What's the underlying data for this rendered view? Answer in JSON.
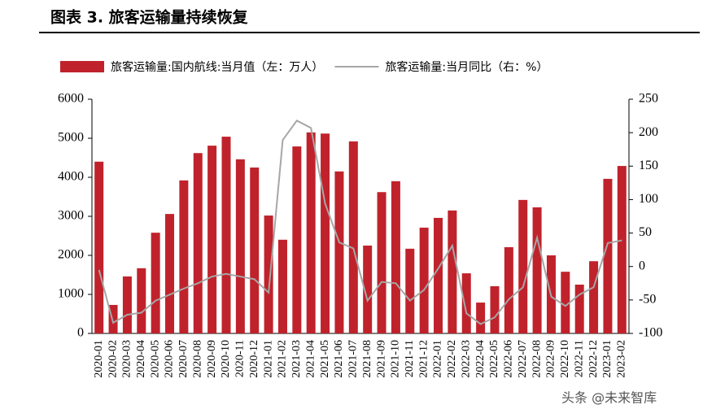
{
  "chart_data": {
    "type": "bar_line",
    "title": "图表 3.  旅客运输量持续恢复",
    "watermark": "头条 @未来智库",
    "categories": [
      "2020-01",
      "2020-02",
      "2020-03",
      "2020-04",
      "2020-05",
      "2020-06",
      "2020-07",
      "2020-08",
      "2020-09",
      "2020-10",
      "2020-11",
      "2020-12",
      "2021-01",
      "2021-02",
      "2021-03",
      "2021-04",
      "2021-05",
      "2021-06",
      "2021-07",
      "2021-08",
      "2021-09",
      "2021-10",
      "2021-11",
      "2021-12",
      "2022-01",
      "2022-02",
      "2022-03",
      "2022-04",
      "2022-05",
      "2022-06",
      "2022-07",
      "2022-08",
      "2022-09",
      "2022-10",
      "2022-11",
      "2022-12",
      "2023-01",
      "2023-02"
    ],
    "series": [
      {
        "name": "旅客运输量:国内航线:当月值（左：万人）",
        "color": "#c0222c",
        "kind": "bar",
        "values": [
          4400,
          730,
          1460,
          1670,
          2580,
          3060,
          3920,
          4620,
          4810,
          5040,
          4460,
          4250,
          3020,
          2400,
          4790,
          5150,
          5120,
          4150,
          4920,
          2250,
          3620,
          3900,
          2170,
          2710,
          2960,
          3150,
          1540,
          790,
          1210,
          2210,
          3420,
          3230,
          2000,
          1580,
          1250,
          1850,
          3960,
          4290
        ]
      },
      {
        "name": "旅客运输量:当月同比（右：%）",
        "color": "#a6a6a6",
        "kind": "line",
        "axis": "y2",
        "values": [
          -5,
          -84,
          -72,
          -69,
          -51,
          -42,
          -33,
          -25,
          -15,
          -11,
          -15,
          -19,
          -39,
          189,
          218,
          207,
          94,
          36,
          27,
          -51,
          -23,
          -25,
          -51,
          -35,
          -3,
          31,
          -70,
          -86,
          -76,
          -49,
          -31,
          43,
          -45,
          -59,
          -42,
          -31,
          35,
          39
        ]
      }
    ],
    "ylim": [
      0,
      6000
    ],
    "yticks": [
      0,
      1000,
      2000,
      3000,
      4000,
      5000,
      6000
    ],
    "y2lim": [
      -100,
      250
    ],
    "y2ticks": [
      -100,
      -50,
      0,
      50,
      100,
      150,
      200,
      250
    ]
  }
}
